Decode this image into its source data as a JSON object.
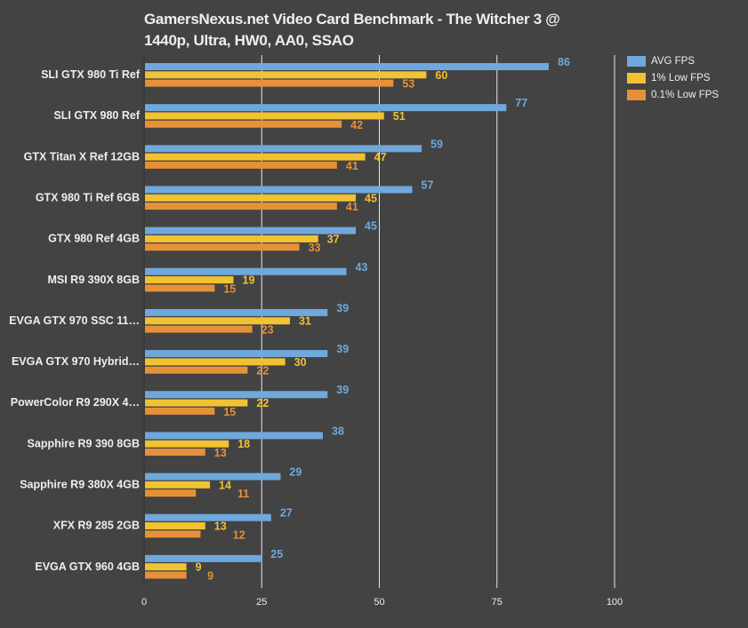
{
  "chart_data": {
    "type": "bar",
    "orientation": "horizontal",
    "title": "GamersNexus.net Video Card Benchmark - The Witcher 3 @ 1440p, Ultra, HW0, AA0, SSAO",
    "xlabel": "",
    "ylabel": "",
    "xlim": [
      0,
      100
    ],
    "xticks": [
      "0",
      "25",
      "50",
      "75",
      "100"
    ],
    "grid": true,
    "legend_position": "top-right",
    "categories": [
      "SLI GTX 980 Ti Ref",
      "SLI GTX 980 Ref",
      "GTX Titan X Ref 12GB",
      "GTX 980 Ti Ref 6GB",
      "GTX 980 Ref 4GB",
      "MSI R9 390X 8GB",
      "EVGA GTX 970 SSC 11…",
      "EVGA GTX 970 Hybrid…",
      "PowerColor R9 290X 4…",
      "Sapphire R9 390 8GB",
      "Sapphire R9 380X 4GB",
      "XFX R9 285 2GB",
      "EVGA GTX 960 4GB"
    ],
    "series": [
      {
        "name": "AVG FPS",
        "color": "#6fa8dc",
        "values": [
          86,
          77,
          59,
          57,
          45,
          43,
          39,
          39,
          39,
          38,
          29,
          27,
          25
        ]
      },
      {
        "name": "1% Low FPS",
        "color": "#f1c232",
        "values": [
          60,
          51,
          47,
          45,
          37,
          19,
          31,
          30,
          22,
          18,
          14,
          13,
          9
        ]
      },
      {
        "name": "0.1% Low FPS",
        "color": "#e69138",
        "values": [
          53,
          42,
          41,
          41,
          33,
          15,
          23,
          22,
          15,
          13,
          11,
          12,
          9
        ]
      }
    ]
  }
}
